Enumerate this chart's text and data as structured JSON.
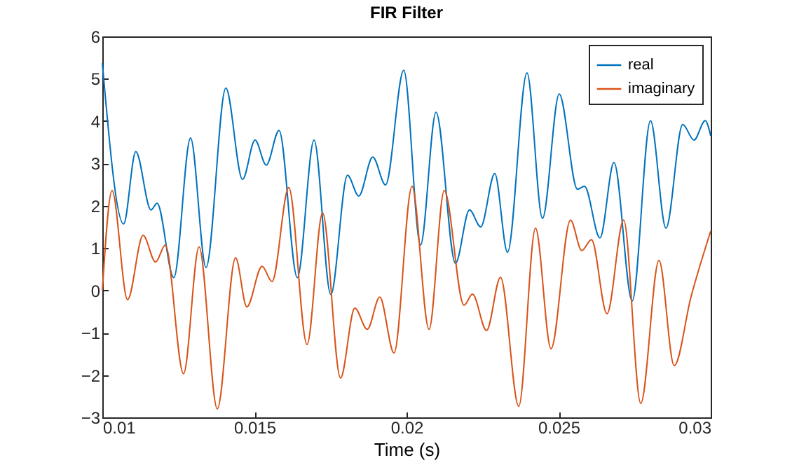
{
  "chart_data": {
    "type": "line",
    "title": "FIR Filter",
    "xlabel": "Time (s)",
    "xlim": [
      0.01,
      0.03
    ],
    "xticks": [
      0.01,
      0.015,
      0.02,
      0.025,
      0.03
    ],
    "ylim": [
      -3,
      6
    ],
    "yticks": [
      -3,
      -2,
      -1,
      0,
      1,
      2,
      3,
      4,
      5,
      6
    ],
    "grid": false,
    "legend": "top right",
    "marker": "none",
    "line_style": "solid",
    "series": [
      {
        "name": "real",
        "color": "#0072bd",
        "x": [
          0.01,
          0.0107,
          0.0111,
          0.0116,
          0.0118,
          0.01235,
          0.0129,
          0.01341,
          0.01406,
          0.01461,
          0.01502,
          0.01539,
          0.01581,
          0.01641,
          0.01696,
          0.01751,
          0.01806,
          0.01843,
          0.01889,
          0.01931,
          0.01991,
          0.02046,
          0.02097,
          0.02161,
          0.02207,
          0.02244,
          0.0229,
          0.02332,
          0.02396,
          0.02447,
          0.02502,
          0.02562,
          0.02585,
          0.02636,
          0.02682,
          0.02742,
          0.02802,
          0.02853,
          0.02908,
          0.02945,
          0.02982,
          0.03
        ],
        "values": [
          5.37,
          1.57,
          3.28,
          1.9,
          2.06,
          0.3,
          3.6,
          0.54,
          4.78,
          2.62,
          3.55,
          2.96,
          3.78,
          0.3,
          3.55,
          -0.1,
          2.72,
          2.23,
          3.15,
          2.49,
          5.2,
          1.07,
          4.21,
          0.64,
          1.9,
          1.5,
          2.76,
          0.9,
          5.14,
          1.7,
          4.64,
          2.39,
          2.46,
          1.24,
          3.02,
          -0.25,
          4.01,
          1.47,
          3.92,
          3.55,
          4.01,
          3.65
        ]
      },
      {
        "name": "imaginary",
        "color": "#d95319",
        "x": [
          0.01,
          0.01032,
          0.01083,
          0.01134,
          0.01175,
          0.01207,
          0.01267,
          0.01318,
          0.01378,
          0.01438,
          0.01475,
          0.01525,
          0.01558,
          0.01613,
          0.01673,
          0.01724,
          0.01783,
          0.0183,
          0.01871,
          0.01912,
          0.01959,
          0.02018,
          0.02074,
          0.02124,
          0.02189,
          0.02217,
          0.02263,
          0.02309,
          0.02369,
          0.02424,
          0.02475,
          0.02539,
          0.02576,
          0.02608,
          0.02659,
          0.02714,
          0.0277,
          0.0283,
          0.0288,
          0.02935,
          0.03
        ],
        "values": [
          0.0,
          2.36,
          -0.22,
          1.3,
          0.67,
          1.07,
          -1.97,
          1.03,
          -2.8,
          0.77,
          -0.39,
          0.57,
          0.21,
          2.43,
          -1.28,
          1.83,
          -2.07,
          -0.42,
          -0.92,
          -0.16,
          -1.48,
          2.46,
          -0.92,
          2.36,
          -0.35,
          -0.09,
          -0.95,
          0.31,
          -2.74,
          1.47,
          -1.38,
          1.66,
          0.94,
          1.2,
          -0.55,
          1.66,
          -2.67,
          0.71,
          -1.78,
          -0.16,
          1.4
        ]
      }
    ]
  }
}
